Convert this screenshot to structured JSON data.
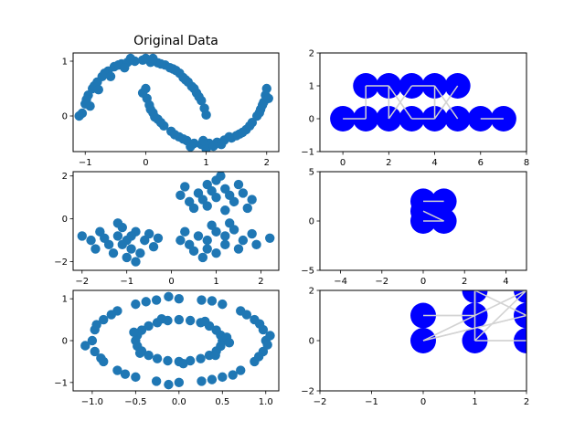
{
  "chart_data": [
    {
      "type": "scatter",
      "title": "Original Data",
      "dataset": "moons",
      "xlim": [
        -1.2,
        2.2
      ],
      "ylim": [
        -0.65,
        1.15
      ],
      "xticks": [
        -1,
        0,
        1,
        2
      ],
      "yticks": [
        0,
        1
      ],
      "color": "#1f77b4",
      "points": [
        [
          -1.05,
          0.05
        ],
        [
          -1.0,
          0.22
        ],
        [
          -0.95,
          0.38
        ],
        [
          -0.88,
          0.5
        ],
        [
          -0.8,
          0.62
        ],
        [
          -0.72,
          0.72
        ],
        [
          -0.62,
          0.82
        ],
        [
          -0.52,
          0.9
        ],
        [
          -0.4,
          0.95
        ],
        [
          -0.3,
          0.98
        ],
        [
          -0.18,
          1.0
        ],
        [
          -0.05,
          1.02
        ],
        [
          0.08,
          0.98
        ],
        [
          0.2,
          0.97
        ],
        [
          0.32,
          0.93
        ],
        [
          0.45,
          0.86
        ],
        [
          0.56,
          0.78
        ],
        [
          0.66,
          0.66
        ],
        [
          0.76,
          0.54
        ],
        [
          0.84,
          0.42
        ],
        [
          0.92,
          0.28
        ],
        [
          0.97,
          0.14
        ],
        [
          1.0,
          0.02
        ],
        [
          -1.1,
          0.0
        ],
        [
          -0.98,
          0.3
        ],
        [
          -0.85,
          0.55
        ],
        [
          -0.68,
          0.78
        ],
        [
          -0.45,
          0.93
        ],
        [
          -0.25,
          1.05
        ],
        [
          0.0,
          1.05
        ],
        [
          0.25,
          0.95
        ],
        [
          0.5,
          0.83
        ],
        [
          0.7,
          0.62
        ],
        [
          0.88,
          0.35
        ],
        [
          -0.92,
          0.18
        ],
        [
          -0.78,
          0.48
        ],
        [
          -0.58,
          0.72
        ],
        [
          -0.35,
          0.88
        ],
        [
          0.12,
          1.05
        ],
        [
          0.4,
          0.88
        ],
        [
          0.62,
          0.7
        ],
        [
          0.8,
          0.5
        ],
        [
          0.0,
          0.5
        ],
        [
          0.02,
          0.32
        ],
        [
          0.06,
          0.2
        ],
        [
          0.12,
          0.06
        ],
        [
          0.2,
          -0.06
        ],
        [
          0.3,
          -0.18
        ],
        [
          0.42,
          -0.28
        ],
        [
          0.55,
          -0.38
        ],
        [
          0.68,
          -0.45
        ],
        [
          0.8,
          -0.5
        ],
        [
          0.92,
          -0.52
        ],
        [
          1.05,
          -0.5
        ],
        [
          1.18,
          -0.48
        ],
        [
          1.3,
          -0.44
        ],
        [
          1.42,
          -0.4
        ],
        [
          1.55,
          -0.33
        ],
        [
          1.66,
          -0.25
        ],
        [
          1.76,
          -0.12
        ],
        [
          1.84,
          0.0
        ],
        [
          1.9,
          0.12
        ],
        [
          1.95,
          0.25
        ],
        [
          1.98,
          0.38
        ],
        [
          2.0,
          0.5
        ],
        [
          -0.05,
          0.42
        ],
        [
          0.08,
          0.12
        ],
        [
          0.25,
          -0.12
        ],
        [
          0.48,
          -0.34
        ],
        [
          0.74,
          -0.56
        ],
        [
          1.0,
          -0.6
        ],
        [
          1.25,
          -0.52
        ],
        [
          1.5,
          -0.36
        ],
        [
          1.72,
          -0.18
        ],
        [
          1.88,
          0.06
        ],
        [
          2.03,
          0.32
        ],
        [
          0.15,
          -0.02
        ],
        [
          0.62,
          -0.42
        ],
        [
          1.12,
          -0.55
        ],
        [
          1.6,
          -0.3
        ],
        [
          1.93,
          0.2
        ],
        [
          0.95,
          -0.45
        ],
        [
          1.38,
          -0.38
        ]
      ]
    },
    {
      "type": "graph",
      "dataset": "moons",
      "xlim": [
        -1,
        8
      ],
      "ylim": [
        -1,
        2
      ],
      "xticks": [
        0,
        2,
        4,
        6,
        8
      ],
      "yticks": [
        -1,
        0,
        1,
        2
      ],
      "node_color": "#0000ff",
      "edge_color": "#d3d3d3",
      "nodes": [
        [
          0,
          0
        ],
        [
          1,
          0
        ],
        [
          2,
          0
        ],
        [
          3,
          0
        ],
        [
          4,
          0
        ],
        [
          5,
          0
        ],
        [
          6,
          0
        ],
        [
          7,
          0
        ],
        [
          1,
          1
        ],
        [
          2,
          1
        ],
        [
          3,
          1
        ],
        [
          4,
          1
        ],
        [
          5,
          1
        ]
      ],
      "edges": [
        [
          0,
          1
        ],
        [
          1,
          8
        ],
        [
          2,
          9
        ],
        [
          2,
          10
        ],
        [
          3,
          4
        ],
        [
          4,
          11
        ],
        [
          4,
          12
        ],
        [
          5,
          11
        ],
        [
          6,
          7
        ],
        [
          8,
          9
        ],
        [
          9,
          3
        ],
        [
          10,
          11
        ]
      ]
    },
    {
      "type": "scatter",
      "dataset": "blobs",
      "xlim": [
        -2.2,
        2.4
      ],
      "ylim": [
        -2.4,
        2.2
      ],
      "xticks": [
        -2,
        -1,
        0,
        1,
        2
      ],
      "yticks": [
        -2,
        0,
        2
      ],
      "color": "#1f77b4",
      "points": [
        [
          -1.2,
          -0.8
        ],
        [
          -1.0,
          -1.0
        ],
        [
          -0.8,
          -0.6
        ],
        [
          -1.4,
          -1.2
        ],
        [
          -0.9,
          -1.4
        ],
        [
          -1.6,
          -0.6
        ],
        [
          -0.6,
          -1.0
        ],
        [
          -1.1,
          -0.4
        ],
        [
          -1.3,
          -1.6
        ],
        [
          -0.7,
          -1.6
        ],
        [
          -1.5,
          -0.9
        ],
        [
          -0.5,
          -0.7
        ],
        [
          -1.8,
          -1.0
        ],
        [
          -1.0,
          -1.8
        ],
        [
          -0.4,
          -1.3
        ],
        [
          -1.2,
          -0.2
        ],
        [
          -0.9,
          -0.8
        ],
        [
          -1.7,
          -1.4
        ],
        [
          -0.3,
          -0.9
        ],
        [
          -2.0,
          -0.8
        ],
        [
          -1.1,
          -1.2
        ],
        [
          -0.8,
          -2.0
        ],
        [
          1.0,
          1.0
        ],
        [
          0.8,
          0.6
        ],
        [
          1.2,
          1.4
        ],
        [
          0.6,
          1.2
        ],
        [
          1.4,
          0.8
        ],
        [
          0.4,
          0.8
        ],
        [
          1.6,
          1.2
        ],
        [
          1.0,
          1.8
        ],
        [
          0.8,
          1.6
        ],
        [
          1.2,
          0.4
        ],
        [
          0.2,
          1.1
        ],
        [
          1.8,
          0.9
        ],
        [
          0.9,
          1.3
        ],
        [
          1.5,
          1.6
        ],
        [
          0.5,
          0.5
        ],
        [
          1.1,
          2.0
        ],
        [
          0.3,
          1.5
        ],
        [
          1.7,
          0.5
        ],
        [
          0.7,
          0.9
        ],
        [
          1.3,
          1.1
        ],
        [
          0.8,
          -1.0
        ],
        [
          1.0,
          -0.6
        ],
        [
          1.2,
          -1.2
        ],
        [
          0.6,
          -0.8
        ],
        [
          1.4,
          -0.5
        ],
        [
          0.4,
          -1.2
        ],
        [
          1.6,
          -1.0
        ],
        [
          1.0,
          -1.6
        ],
        [
          0.8,
          -1.4
        ],
        [
          1.2,
          -0.8
        ],
        [
          0.3,
          -0.6
        ],
        [
          1.8,
          -0.7
        ],
        [
          0.9,
          -0.3
        ],
        [
          1.5,
          -1.4
        ],
        [
          0.5,
          -1.5
        ],
        [
          2.2,
          -0.9
        ],
        [
          0.7,
          -1.8
        ],
        [
          1.3,
          -0.2
        ],
        [
          0.2,
          -1.0
        ],
        [
          1.9,
          -1.2
        ]
      ]
    },
    {
      "type": "graph",
      "dataset": "blobs",
      "xlim": [
        -5,
        5
      ],
      "ylim": [
        -5,
        5
      ],
      "xticks": [
        -4,
        -2,
        0,
        2,
        4
      ],
      "yticks": [
        -5,
        0,
        5
      ],
      "node_color": "#0000ff",
      "edge_color": "#d3d3d3",
      "nodes": [
        [
          0,
          0
        ],
        [
          0,
          1
        ],
        [
          0,
          2
        ],
        [
          1,
          0
        ],
        [
          1,
          2
        ]
      ],
      "edges": [
        [
          0,
          3
        ],
        [
          1,
          3
        ],
        [
          2,
          4
        ]
      ]
    },
    {
      "type": "scatter",
      "dataset": "circles",
      "xlim": [
        -1.22,
        1.15
      ],
      "ylim": [
        -1.2,
        1.2
      ],
      "xticks": [
        -1.0,
        -0.5,
        0.0,
        0.5,
        1.0
      ],
      "yticks": [
        -1,
        0,
        1
      ],
      "xtick_labels": [
        "−1.0",
        "−0.5",
        "0.0",
        "0.5",
        "1.0"
      ],
      "color": "#1f77b4",
      "points": [
        [
          1.0,
          0.0
        ],
        [
          0.97,
          0.26
        ],
        [
          0.87,
          0.5
        ],
        [
          0.71,
          0.71
        ],
        [
          0.5,
          0.87
        ],
        [
          0.26,
          0.97
        ],
        [
          0.0,
          1.0
        ],
        [
          -0.26,
          0.97
        ],
        [
          -0.5,
          0.87
        ],
        [
          -0.71,
          0.71
        ],
        [
          -0.87,
          0.5
        ],
        [
          -0.97,
          0.26
        ],
        [
          -1.0,
          0.0
        ],
        [
          -0.97,
          -0.26
        ],
        [
          -0.87,
          -0.5
        ],
        [
          -0.71,
          -0.71
        ],
        [
          -0.5,
          -0.87
        ],
        [
          -0.26,
          -0.97
        ],
        [
          0.0,
          -1.0
        ],
        [
          0.26,
          -0.97
        ],
        [
          0.5,
          -0.87
        ],
        [
          0.71,
          -0.71
        ],
        [
          0.87,
          -0.5
        ],
        [
          0.97,
          -0.26
        ],
        [
          1.05,
          0.12
        ],
        [
          0.93,
          0.4
        ],
        [
          0.78,
          0.62
        ],
        [
          0.38,
          0.95
        ],
        [
          -0.12,
          1.05
        ],
        [
          -0.38,
          0.93
        ],
        [
          -0.78,
          0.62
        ],
        [
          -0.95,
          0.38
        ],
        [
          -1.08,
          -0.12
        ],
        [
          -0.9,
          -0.42
        ],
        [
          -0.62,
          -0.8
        ],
        [
          -0.12,
          -1.05
        ],
        [
          0.38,
          -0.93
        ],
        [
          0.62,
          -0.82
        ],
        [
          0.92,
          -0.38
        ],
        [
          1.02,
          -0.1
        ],
        [
          0.5,
          0.0
        ],
        [
          0.48,
          0.13
        ],
        [
          0.43,
          0.25
        ],
        [
          0.35,
          0.35
        ],
        [
          0.25,
          0.43
        ],
        [
          0.13,
          0.48
        ],
        [
          0.0,
          0.5
        ],
        [
          -0.13,
          0.48
        ],
        [
          -0.25,
          0.43
        ],
        [
          -0.35,
          0.35
        ],
        [
          -0.43,
          0.25
        ],
        [
          -0.48,
          0.13
        ],
        [
          -0.5,
          0.0
        ],
        [
          -0.48,
          -0.13
        ],
        [
          -0.43,
          -0.25
        ],
        [
          -0.35,
          -0.35
        ],
        [
          -0.25,
          -0.43
        ],
        [
          -0.13,
          -0.48
        ],
        [
          0.0,
          -0.5
        ],
        [
          0.13,
          -0.48
        ],
        [
          0.25,
          -0.43
        ],
        [
          0.35,
          -0.35
        ],
        [
          0.43,
          -0.25
        ],
        [
          0.48,
          -0.13
        ],
        [
          0.55,
          0.08
        ],
        [
          0.3,
          0.46
        ],
        [
          -0.2,
          0.52
        ],
        [
          -0.52,
          0.2
        ],
        [
          -0.45,
          -0.3
        ],
        [
          0.05,
          -0.55
        ],
        [
          0.42,
          -0.35
        ],
        [
          0.58,
          -0.05
        ]
      ]
    },
    {
      "type": "graph",
      "dataset": "circles",
      "xlim": [
        -2,
        2
      ],
      "ylim": [
        -2,
        2
      ],
      "xticks": [
        -2,
        -1,
        0,
        1,
        2
      ],
      "yticks": [
        -2,
        0,
        2
      ],
      "node_color": "#0000ff",
      "edge_color": "#d3d3d3",
      "nodes": [
        [
          0,
          0
        ],
        [
          0,
          1
        ],
        [
          1,
          0
        ],
        [
          1,
          1
        ],
        [
          1,
          2
        ],
        [
          2,
          0
        ],
        [
          2,
          1
        ],
        [
          2,
          2
        ]
      ],
      "edges": [
        [
          0,
          3
        ],
        [
          1,
          3
        ],
        [
          2,
          4
        ],
        [
          3,
          4
        ],
        [
          2,
          5
        ],
        [
          4,
          6
        ],
        [
          0,
          6
        ],
        [
          3,
          7
        ],
        [
          4,
          7
        ],
        [
          2,
          7
        ]
      ]
    }
  ]
}
